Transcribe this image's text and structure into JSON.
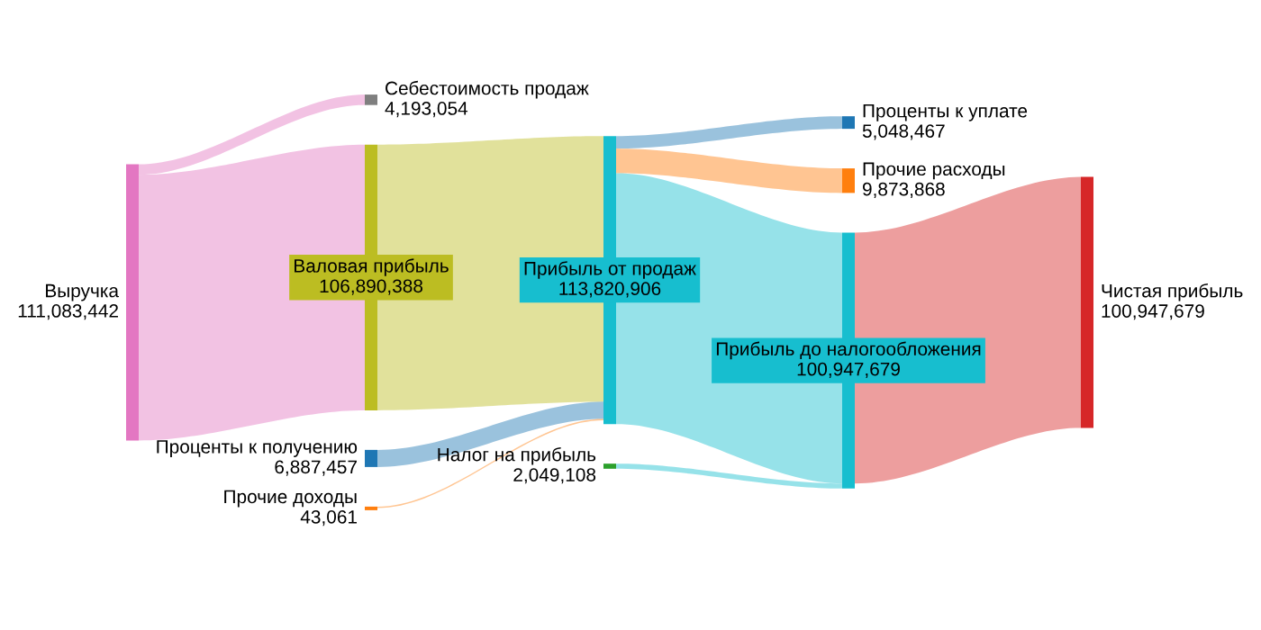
{
  "chart_data": {
    "type": "other",
    "categories": [
      "Выручка",
      "Себестоимость продаж",
      "Валовая прибыль",
      "Проценты к получению",
      "Прочие доходы",
      "Прибыль от продаж",
      "Налог на прибыль",
      "Проценты к уплате",
      "Прочие расходы",
      "Прибыль до налогообложения",
      "Чистая прибыль"
    ],
    "values": [
      111083442,
      4193054,
      106890388,
      6887457,
      43061,
      113820906,
      2049108,
      5048467,
      9873868,
      100947679,
      100947679
    ],
    "value_labels": [
      "111,083,442",
      "4,193,054",
      "106,890,388",
      "6,887,457",
      "43,061",
      "113,820,906",
      "2,049,108",
      "5,048,467",
      "9,873,868",
      "100,947,679",
      "100,947,679"
    ],
    "colors": [
      "#e377c2",
      "#7f7f7f",
      "#bcbd22",
      "#1f77b4",
      "#ff7f0e",
      "#17becf",
      "#2ca02c",
      "#1f77b4",
      "#ff7f0e",
      "#17becf",
      "#d62728"
    ],
    "series": [
      {
        "color": "#e377c2",
        "x": [
          "Выручка",
          "Себестоимость продаж"
        ],
        "values": [
          null,
          null
        ]
      },
      {
        "color": "#e377c2",
        "x": [
          "Выручка",
          "Валовая прибыль"
        ],
        "values": [
          null,
          null
        ]
      },
      {
        "color": "#bcbd22",
        "x": [
          "Валовая прибыль",
          "Прибыль от продаж"
        ],
        "values": [
          null,
          null
        ]
      },
      {
        "color": "#1f77b4",
        "x": [
          "Проценты к получению",
          "Прибыль от продаж"
        ],
        "values": [
          null,
          null
        ]
      },
      {
        "color": "#ff7f0e",
        "x": [
          "Прочие доходы",
          "Прибыль от продаж"
        ],
        "values": [
          null,
          null
        ]
      },
      {
        "color": "#1f77b4",
        "x": [
          "Прибыль от продаж",
          "Проценты к уплате"
        ],
        "values": [
          null,
          null
        ]
      },
      {
        "color": "#ff7f0e",
        "x": [
          "Прибыль от продаж",
          "Прочие расходы"
        ],
        "values": [
          null,
          null
        ]
      },
      {
        "color": "#17becf",
        "x": [
          "Прибыль от продаж",
          "Прибыль до налогообложения"
        ],
        "values": [
          null,
          null
        ]
      },
      {
        "color": "#17becf",
        "x": [
          "Налог на прибыль",
          "Прибыль до налогообложения"
        ],
        "values": [
          null,
          null
        ]
      },
      {
        "color": "#d62728",
        "x": [
          "Прибыль до налогообложения",
          "Чистая прибыль"
        ],
        "values": [
          null,
          null
        ]
      }
    ]
  }
}
